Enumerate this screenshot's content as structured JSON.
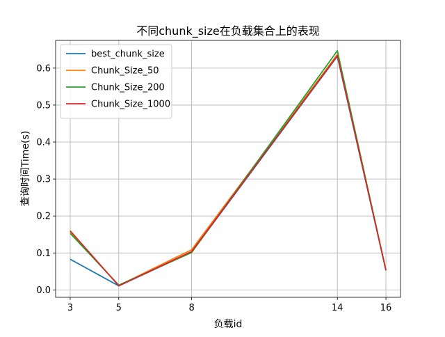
{
  "chart_data": {
    "type": "line",
    "title": "不同chunk_size在负载集合上的表现",
    "xlabel": "负载id",
    "ylabel": "查询时间Time(s)",
    "x": [
      3,
      5,
      8,
      14,
      16
    ],
    "xticks": [
      3,
      5,
      8,
      14,
      16
    ],
    "yticks": [
      0.0,
      0.1,
      0.2,
      0.3,
      0.4,
      0.5,
      0.6
    ],
    "ytick_labels": [
      "0.0",
      "0.1",
      "0.2",
      "0.3",
      "0.4",
      "0.5",
      "0.6"
    ],
    "xlim": [
      2.4,
      16.6
    ],
    "ylim": [
      -0.02,
      0.675
    ],
    "grid": true,
    "legend_position": "top-left",
    "series": [
      {
        "name": "best_chunk_size",
        "color": "#1f77b4",
        "values": [
          0.083,
          0.011,
          0.102,
          0.632,
          0.053
        ]
      },
      {
        "name": "Chunk_Size_50",
        "color": "#ff7f0e",
        "values": [
          0.157,
          0.012,
          0.109,
          0.637,
          0.054
        ]
      },
      {
        "name": "Chunk_Size_200",
        "color": "#2ca02c",
        "values": [
          0.153,
          0.013,
          0.101,
          0.647,
          0.053
        ]
      },
      {
        "name": "Chunk_Size_1000",
        "color": "#d62728",
        "values": [
          0.16,
          0.011,
          0.104,
          0.634,
          0.053
        ]
      }
    ]
  }
}
